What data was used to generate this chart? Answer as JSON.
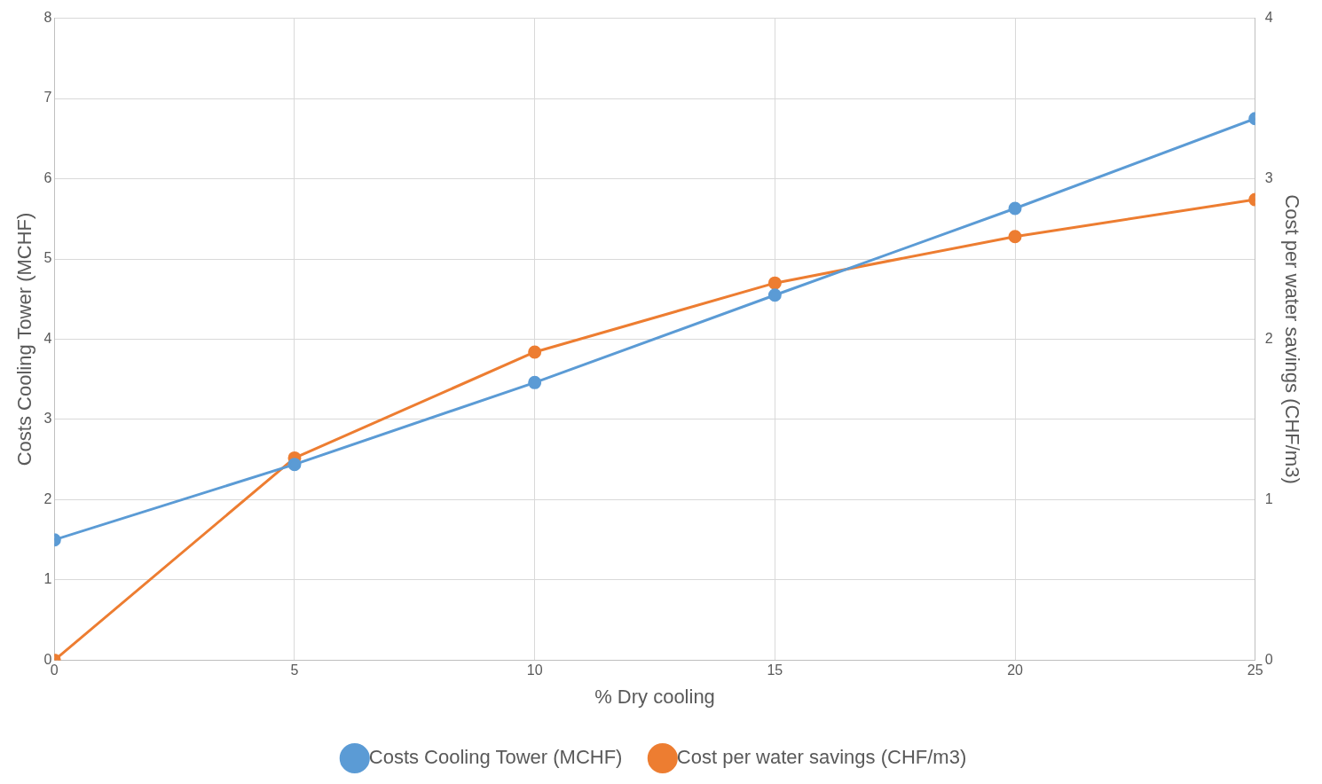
{
  "chart_data": {
    "type": "line",
    "xlabel": "% Dry cooling",
    "ylabel": "Costs Cooling Tower (MCHF)",
    "y2label": "Cost per water savings (CHF/m3)",
    "x": [
      0,
      5,
      10,
      15,
      20,
      25
    ],
    "series": [
      {
        "name": "Costs Cooling Tower (MCHF)",
        "color": "#5b9bd5",
        "values": [
          1.5,
          2.44,
          3.46,
          4.55,
          5.63,
          6.75
        ]
      },
      {
        "name": "Cost per water savings (CHF/m3)",
        "color": "#ed7d31",
        "axis": "y2",
        "values": [
          0,
          1.26,
          1.92,
          2.35,
          2.64,
          2.87
        ]
      }
    ],
    "xlim": [
      0,
      25
    ],
    "xticks": [
      0,
      5,
      10,
      15,
      20,
      25
    ],
    "ylim": [
      0,
      8
    ],
    "yticks": [
      0,
      1,
      2,
      3,
      4,
      5,
      6,
      7,
      8
    ],
    "y2lim": [
      0,
      4
    ],
    "y2ticks": [
      0,
      1,
      2,
      3,
      4
    ],
    "grid": true,
    "legend": "bottom",
    "marker": "circle",
    "line_style": "solid"
  }
}
